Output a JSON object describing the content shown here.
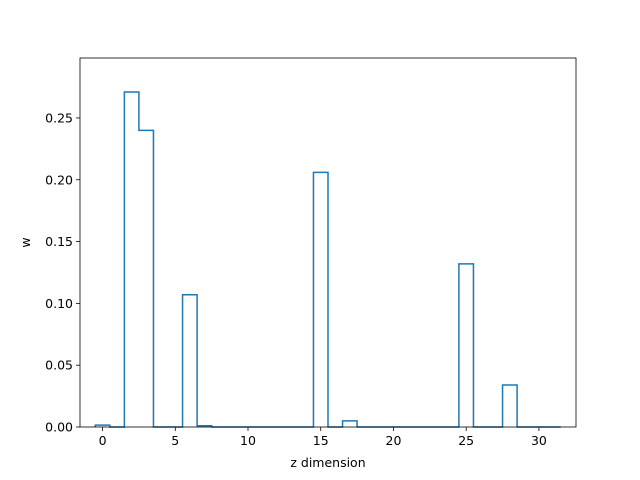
{
  "chart_data": {
    "type": "bar",
    "style": "step-outline",
    "xlabel": "z dimension",
    "ylabel": "w",
    "xlim": [
      -1.55,
      32.55
    ],
    "ylim": [
      0,
      0.2985
    ],
    "x": [
      0,
      1,
      2,
      3,
      4,
      5,
      6,
      7,
      8,
      9,
      10,
      11,
      12,
      13,
      14,
      15,
      16,
      17,
      18,
      19,
      20,
      21,
      22,
      23,
      24,
      25,
      26,
      27,
      28,
      29,
      30,
      31
    ],
    "values": [
      0.0015,
      0.0,
      0.271,
      0.24,
      0.0,
      0.0,
      0.107,
      0.001,
      0.0,
      0.0,
      0.0,
      0.0,
      0.0,
      0.0,
      0.0,
      0.206,
      0.0,
      0.005,
      0.0,
      0.0,
      0.0,
      0.0,
      0.0,
      0.0,
      0.0,
      0.132,
      0.0,
      0.0,
      0.034,
      0.0,
      0.0,
      0.0
    ],
    "xticks": [
      0,
      5,
      10,
      15,
      20,
      25,
      30
    ],
    "xtick_labels": [
      "0",
      "5",
      "10",
      "15",
      "20",
      "25",
      "30"
    ],
    "yticks": [
      0.0,
      0.05,
      0.1,
      0.15,
      0.2,
      0.25
    ],
    "ytick_labels": [
      "0.00",
      "0.05",
      "0.10",
      "0.15",
      "0.20",
      "0.25"
    ],
    "color": "#1f77b4",
    "grid": false,
    "legend": false
  }
}
